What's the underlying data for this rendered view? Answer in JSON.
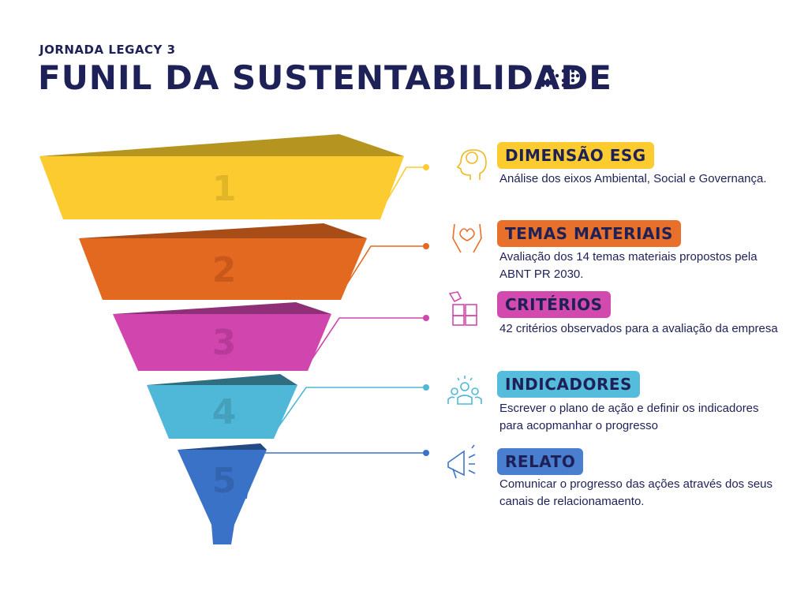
{
  "header": {
    "subtitle": "JORNADA LEGACY 3",
    "title": "FUNIL DA SUSTENTABILIDADE"
  },
  "stages": [
    {
      "number": "1",
      "title": "DIMENSÃO ESG",
      "description": "Análise dos eixos Ambiental, Social e Governança."
    },
    {
      "number": "2",
      "title": "TEMAS MATERIAIS",
      "description": "Avaliação dos 14 temas materiais propostos pela ABNT PR 2030."
    },
    {
      "number": "3",
      "title": "CRITÉRIOS",
      "description": "42 critérios observados para a avaliação da empresa"
    },
    {
      "number": "4",
      "title": "INDICADORES",
      "description": "Escrever o plano de ação e definir os indicadores para acopmanhar o progresso"
    },
    {
      "number": "5",
      "title": "RELATO",
      "description": "Comunicar o progresso das ações através dos seus canais de relacionamaento."
    }
  ]
}
